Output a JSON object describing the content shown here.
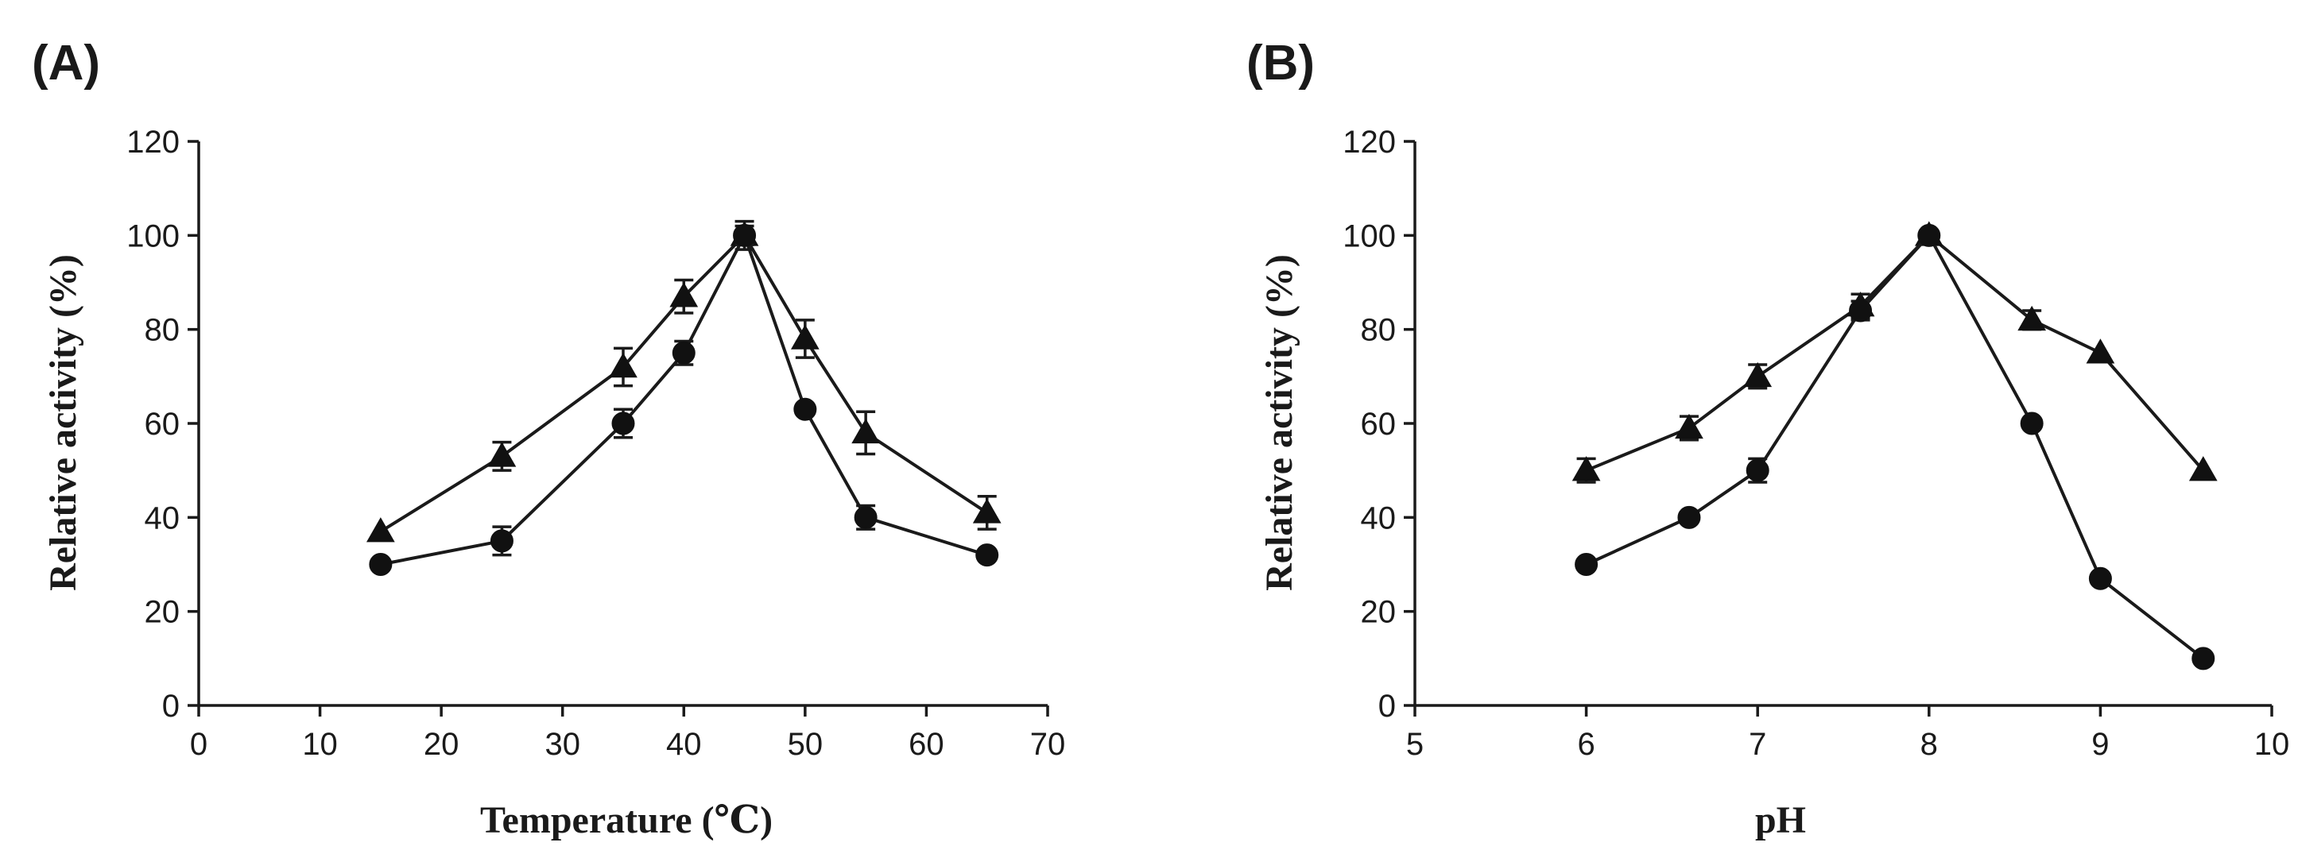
{
  "chart_data": [
    {
      "type": "line",
      "panel_label": "(A)",
      "title": "",
      "xlabel": "Temperature (℃)",
      "ylabel": "Relative activity (%)",
      "xlim": [
        0,
        70
      ],
      "ylim": [
        0,
        120
      ],
      "xticks": [
        0,
        10,
        20,
        30,
        40,
        50,
        60,
        70
      ],
      "yticks": [
        0,
        20,
        40,
        60,
        80,
        100,
        120
      ],
      "grid": false,
      "series": [
        {
          "name": "triangle",
          "marker": "triangle",
          "x": [
            15,
            25,
            35,
            40,
            45,
            50,
            55,
            65
          ],
          "y": [
            37,
            53,
            72,
            87,
            100,
            78,
            58,
            41
          ],
          "err": [
            0,
            3,
            4,
            3.5,
            3,
            4,
            4.5,
            3.5
          ]
        },
        {
          "name": "circle",
          "marker": "circle",
          "x": [
            15,
            25,
            35,
            40,
            45,
            50,
            55,
            65
          ],
          "y": [
            30,
            35,
            60,
            75,
            100,
            63,
            40,
            32
          ],
          "err": [
            0,
            3,
            3,
            2.5,
            2,
            0,
            2.5,
            0
          ]
        }
      ]
    },
    {
      "type": "line",
      "panel_label": "(B)",
      "title": "",
      "xlabel": "pH",
      "ylabel": "Relative activity (%)",
      "xlim": [
        5,
        10
      ],
      "ylim": [
        0,
        120
      ],
      "xticks": [
        5,
        6,
        7,
        8,
        9,
        10
      ],
      "yticks": [
        0,
        20,
        40,
        60,
        80,
        100,
        120
      ],
      "grid": false,
      "series": [
        {
          "name": "triangle",
          "marker": "triangle",
          "x": [
            6,
            6.6,
            7,
            7.6,
            8,
            8.6,
            9,
            9.6
          ],
          "y": [
            50,
            59,
            70,
            85,
            100,
            82,
            75,
            50
          ],
          "err": [
            2.5,
            2.5,
            2.5,
            2.5,
            0,
            2,
            0,
            0
          ]
        },
        {
          "name": "circle",
          "marker": "circle",
          "x": [
            6,
            6.6,
            7,
            7.6,
            8,
            8.6,
            9,
            9.6
          ],
          "y": [
            30,
            40,
            50,
            84,
            100,
            60,
            27,
            10
          ],
          "err": [
            0,
            0,
            2.5,
            2,
            0,
            0,
            0,
            0
          ]
        }
      ]
    }
  ]
}
